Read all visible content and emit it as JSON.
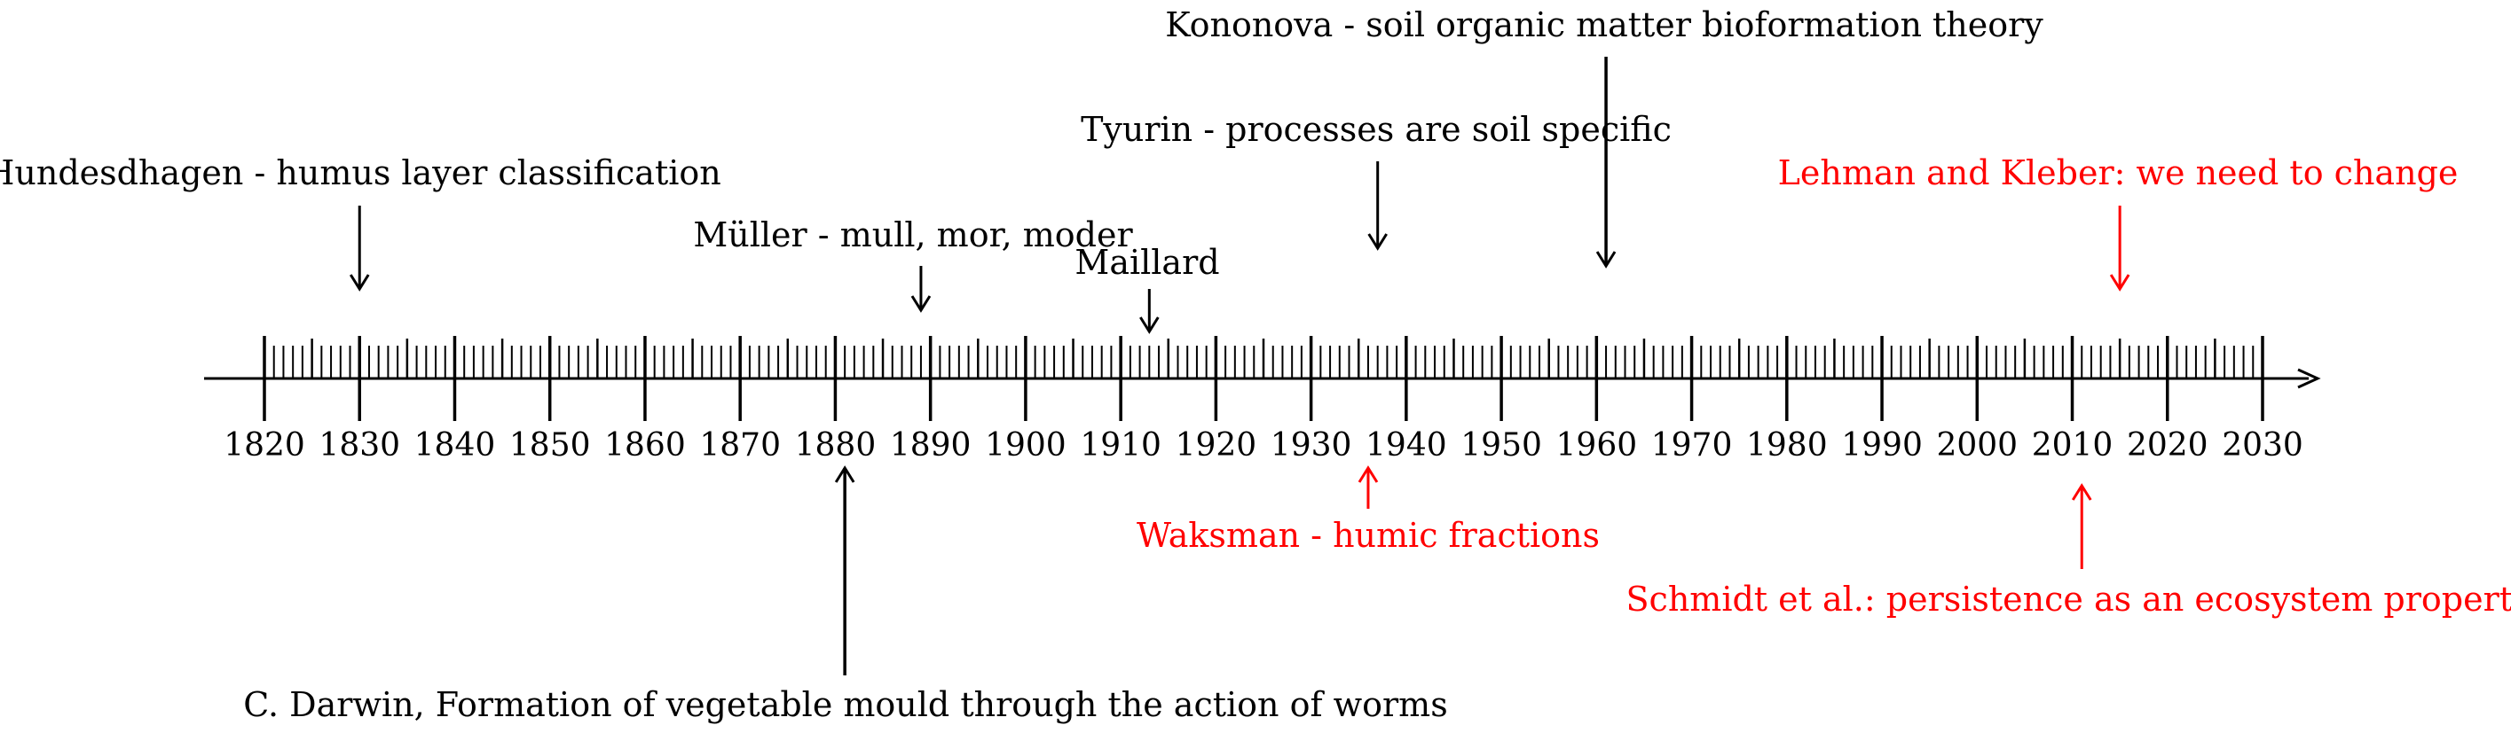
{
  "timeline": {
    "start_year": 1820,
    "end_year": 2030,
    "axis_labels": [
      "1820",
      "1830",
      "1840",
      "1850",
      "1860",
      "1870",
      "1880",
      "1890",
      "1900",
      "1910",
      "1920",
      "1930",
      "1940",
      "1950",
      "1960",
      "1970",
      "1980",
      "1990",
      "2000",
      "2010",
      "2020",
      "2030"
    ],
    "events": [
      {
        "id": "hundeshagen",
        "text": "Hundesdhagen - humus layer classification",
        "year": 1830,
        "side": "above",
        "color": "#000000"
      },
      {
        "id": "muller",
        "text": "Müller - mull, mor, moder",
        "year": 1889,
        "side": "above",
        "color": "#000000"
      },
      {
        "id": "maillard",
        "text": "Maillard",
        "year": 1913,
        "side": "above",
        "color": "#000000"
      },
      {
        "id": "tyurin",
        "text": "Tyurin - processes are soil specific",
        "year": 1937,
        "side": "above",
        "color": "#000000"
      },
      {
        "id": "kononova",
        "text": "Kononova - soil organic matter bioformation theory",
        "year": 1961,
        "side": "above",
        "color": "#000000"
      },
      {
        "id": "lehman-kleber",
        "text": "Lehman and Kleber: we need to change",
        "year": 2015,
        "side": "above",
        "color": "#ff0000"
      },
      {
        "id": "darwin",
        "text": "C. Darwin, Formation of vegetable mould through the action of worms",
        "year": 1881,
        "side": "below",
        "color": "#000000"
      },
      {
        "id": "waksman",
        "text": "Waksman - humic fractions",
        "year": 1936,
        "side": "below",
        "color": "#ff0000"
      },
      {
        "id": "schmidt",
        "text": "Schmidt et al.: persistence as an ecosystem property",
        "year": 2011,
        "side": "below",
        "color": "#ff0000"
      }
    ]
  }
}
